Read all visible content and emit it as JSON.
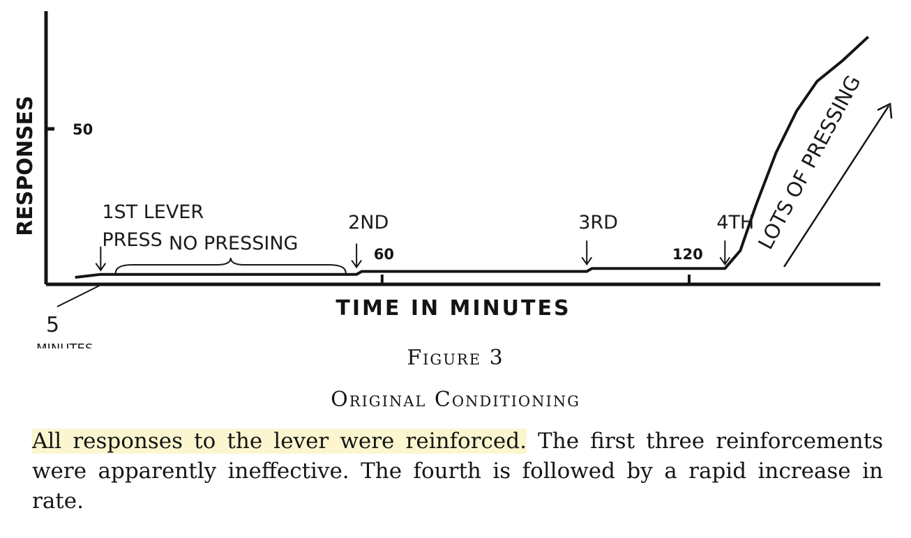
{
  "chart_data": {
    "type": "line",
    "xlabel": "TIME IN MINUTES",
    "ylabel": "RESPONSES",
    "x_ticks": [
      {
        "value": 60,
        "label": "60"
      },
      {
        "value": 120,
        "label": "120"
      }
    ],
    "y_ticks": [
      {
        "value": 50,
        "label": "50"
      }
    ],
    "xlim": [
      -2,
      156
    ],
    "ylim": [
      0,
      84
    ],
    "series": [
      {
        "x": [
          0,
          5,
          55,
          56,
          100,
          101,
          127,
          130,
          133,
          137,
          141,
          145,
          150,
          155
        ],
        "y": [
          0,
          1,
          1,
          2,
          2,
          3,
          3,
          9,
          24,
          42,
          56,
          66,
          73,
          81
        ]
      }
    ],
    "annotations": [
      {
        "x": 5,
        "y": 1,
        "text_lines": [
          "1ST LEVER",
          "PRESS"
        ]
      },
      {
        "x": 55,
        "y": 2,
        "text_lines": [
          "2ND"
        ]
      },
      {
        "x": 100,
        "y": 3,
        "text_lines": [
          "3RD"
        ]
      },
      {
        "x": 127,
        "y": 3,
        "text_lines": [
          "4TH"
        ]
      }
    ],
    "brace_label": "NO PRESSING",
    "start_label_lines": [
      "5",
      "MINUTES"
    ],
    "rising_label": "LOTS OF PRESSING"
  },
  "figure": {
    "label": "Figure 3",
    "subtitle": "Original Conditioning",
    "caption_highlight": "All responses to the lever were reinforced.",
    "caption_rest": " The first three reinforcements were apparently ineffective. The fourth is followed by a rapid increase in rate."
  },
  "colors": {
    "ink": "#141414",
    "highlight": "#fbf6cf"
  }
}
